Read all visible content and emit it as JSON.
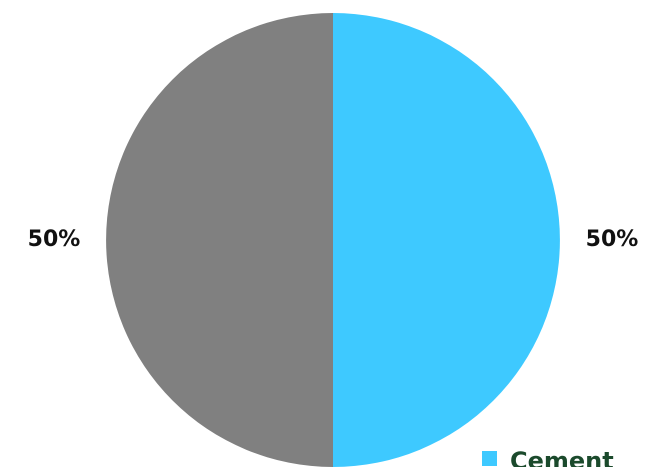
{
  "chart_data": {
    "type": "pie",
    "categories": [
      "Cement",
      null
    ],
    "values": [
      50,
      50
    ],
    "value_labels": [
      "50%",
      "50%"
    ],
    "colors": [
      "#3ec9ff",
      "#808080"
    ],
    "legend": "bottom-right"
  }
}
